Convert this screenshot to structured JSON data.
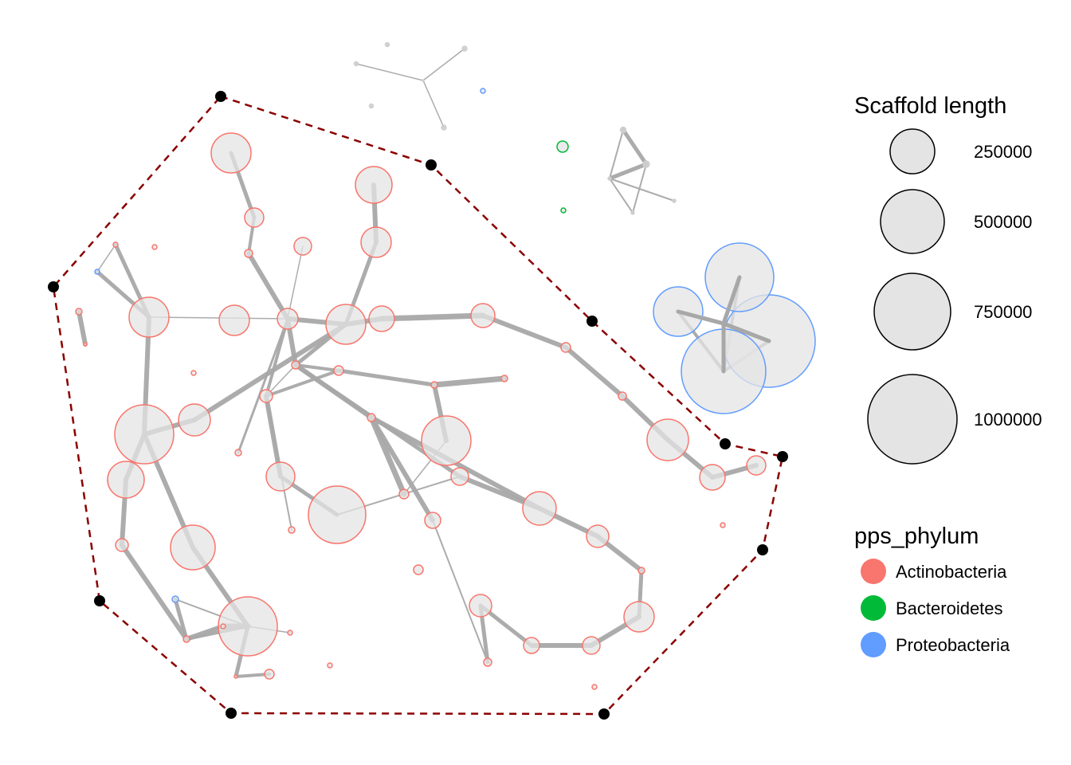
{
  "legend": {
    "size_title": "Scaffold length",
    "size_items": [
      "250000",
      "500000",
      "750000",
      "1000000"
    ],
    "color_title": "pps_phylum",
    "color_items": [
      {
        "label": "Actinobacteria",
        "color": "#F8766D"
      },
      {
        "label": "Bacteroidetes",
        "color": "#00BA38"
      },
      {
        "label": "Proteobacteria",
        "color": "#619CFF"
      }
    ]
  },
  "colors": {
    "edge": "#a8a8a8",
    "hull": "#8B0000",
    "hull_vertex": "#000000",
    "node_fill": "#e4e4e4",
    "grey_node": "#cfcfcf"
  }
}
